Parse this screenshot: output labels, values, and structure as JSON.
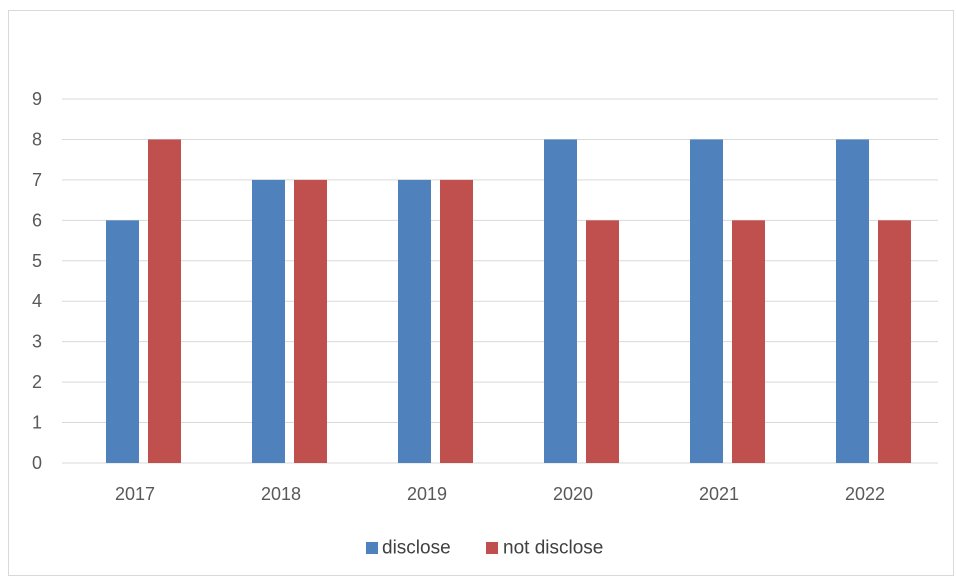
{
  "chart_data": {
    "type": "bar",
    "title": "",
    "xlabel": "",
    "ylabel": "",
    "categories": [
      "2017",
      "2018",
      "2019",
      "2020",
      "2021",
      "2022"
    ],
    "series": [
      {
        "name": "disclose",
        "color": "#4f81bd",
        "values": [
          6,
          7,
          7,
          8,
          8,
          8
        ]
      },
      {
        "name": "not disclose",
        "color": "#c0504d",
        "values": [
          8,
          7,
          7,
          6,
          6,
          6
        ]
      }
    ],
    "ylim": [
      0,
      9
    ],
    "yticks": [
      "0",
      "1",
      "2",
      "3",
      "4",
      "5",
      "6",
      "7",
      "8",
      "9"
    ],
    "grid": true,
    "legend_position": "bottom"
  }
}
